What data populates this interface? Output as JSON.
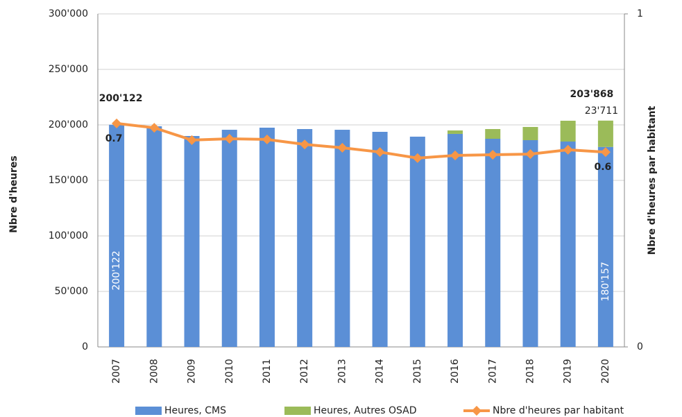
{
  "chart_data": {
    "type": "bar",
    "y_label": "Nbre d'heures",
    "y2_label": "Nbre d'heures par habitant",
    "categories": [
      "2007",
      "2008",
      "2009",
      "2010",
      "2011",
      "2012",
      "2013",
      "2014",
      "2015",
      "2016",
      "2017",
      "2018",
      "2019",
      "2020"
    ],
    "series": [
      {
        "name": "Heures, CMS",
        "color": "#5b8fd6",
        "stacked": true,
        "values": [
          200122,
          198750,
          190000,
          195600,
          197500,
          196250,
          195600,
          193750,
          189400,
          191900,
          187500,
          186250,
          185000,
          180157
        ],
        "value_labels": [
          "200'122",
          null,
          null,
          null,
          null,
          null,
          null,
          null,
          null,
          null,
          null,
          null,
          null,
          "180'157"
        ]
      },
      {
        "name": "Heures, Autres OSAD",
        "color": "#9bbb59",
        "stacked": true,
        "values": [
          0,
          0,
          0,
          0,
          0,
          0,
          0,
          0,
          0,
          3100,
          8750,
          11900,
          18750,
          23711
        ],
        "value_labels": [
          null,
          null,
          null,
          null,
          null,
          null,
          null,
          null,
          null,
          null,
          null,
          null,
          null,
          "23'711"
        ]
      },
      {
        "name": "Nbre d'heures par habitant",
        "color": "#f79646",
        "type": "line",
        "axis": "y2",
        "values": [
          0.671,
          0.658,
          0.621,
          0.625,
          0.623,
          0.608,
          0.598,
          0.585,
          0.567,
          0.575,
          0.577,
          0.579,
          0.592,
          0.585
        ],
        "value_labels": [
          "0.7",
          null,
          null,
          null,
          null,
          null,
          null,
          null,
          null,
          null,
          null,
          null,
          null,
          "0.6"
        ]
      }
    ],
    "annotations": [
      {
        "label": "200'122",
        "category": "2007",
        "value": 200122
      },
      {
        "label": "203'868",
        "category": "2020",
        "value": 203868
      }
    ],
    "ylim": [
      0,
      300000
    ],
    "yticks": [
      0,
      {
        "value": 50000,
        "label": "50'000"
      },
      {
        "value": 100000,
        "label": "100'000"
      },
      {
        "value": 150000,
        "label": "150'000"
      },
      {
        "value": 200000,
        "label": "200'000"
      },
      {
        "value": 250000,
        "label": "250'000"
      },
      {
        "value": 300000,
        "label": "300'000"
      }
    ],
    "y2lim": [
      0,
      1
    ],
    "y2ticks": [
      0,
      1
    ],
    "grid": true,
    "legend": "bottom"
  }
}
